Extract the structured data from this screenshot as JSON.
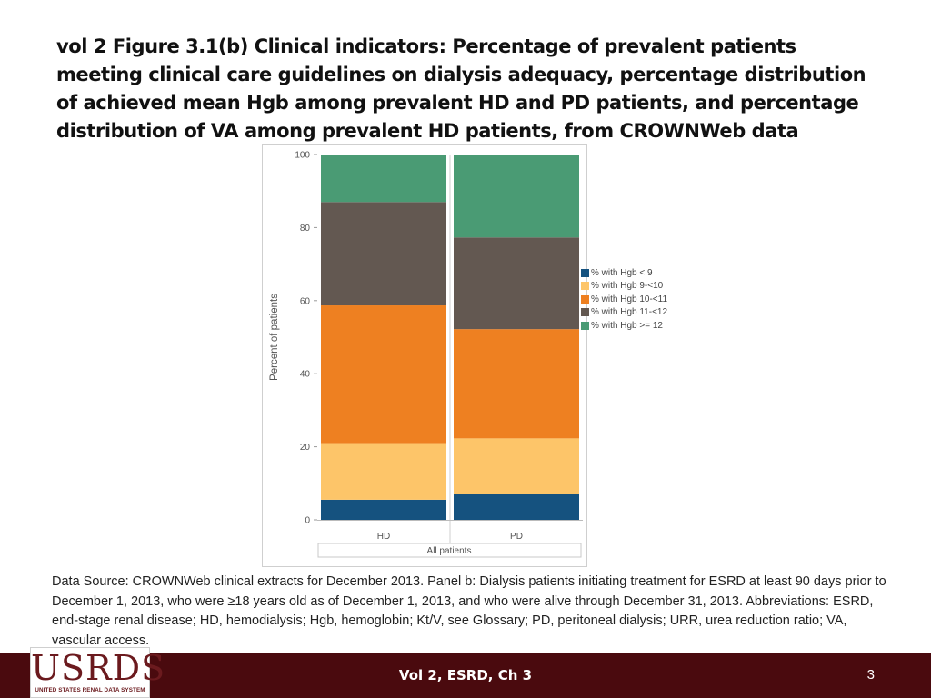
{
  "slide": {
    "title": "vol 2  Figure 3.1(b) Clinical indicators: Percentage of prevalent patients meeting clinical care guidelines on dialysis adequacy, percentage distribution of achieved mean Hgb among prevalent HD and PD patients, and percentage distribution of VA among prevalent HD patients, from CROWNWeb data",
    "source_note": "Data Source: CROWNWeb clinical extracts for December 2013. Panel b: Dialysis patients initiating treatment for ESRD at least 90 days prior to December 1, 2013, who were ≥18 years old as of December 1, 2013, and who were alive through December 31, 2013. Abbreviations: ESRD, end-stage renal disease; HD, hemodialysis; Hgb, hemoglobin; Kt/V, see Glossary; PD, peritoneal dialysis; URR, urea reduction ratio; VA, vascular access.",
    "footer_label": "Vol 2, ESRD, Ch 3",
    "page_number": "3"
  },
  "logo": {
    "word": "USRDS",
    "subtitle": "UNITED STATES RENAL DATA SYSTEM"
  },
  "colors": {
    "footer": "#4a0a0e",
    "series": [
      "#15527f",
      "#fdc569",
      "#ee8021",
      "#635851",
      "#4a9b74"
    ]
  },
  "chart_data": {
    "type": "bar",
    "stacked": true,
    "categories": [
      "HD",
      "PD"
    ],
    "series": [
      {
        "name": "% with Hgb < 9",
        "values": [
          5.5,
          7.0
        ]
      },
      {
        "name": "% with Hgb 9-<10",
        "values": [
          15.5,
          15.3
        ]
      },
      {
        "name": "% with Hgb 10-<11",
        "values": [
          37.7,
          29.9
        ]
      },
      {
        "name": "% with Hgb 11-<12",
        "values": [
          28.3,
          25.1
        ]
      },
      {
        "name": "% with Hgb >= 12",
        "values": [
          13.0,
          22.7
        ]
      }
    ],
    "ylabel": "Percent of patients",
    "xlabel": "All patients",
    "ylim": [
      0,
      100
    ],
    "yticks": [
      0,
      20,
      40,
      60,
      80,
      100
    ],
    "legend_position": "right"
  }
}
